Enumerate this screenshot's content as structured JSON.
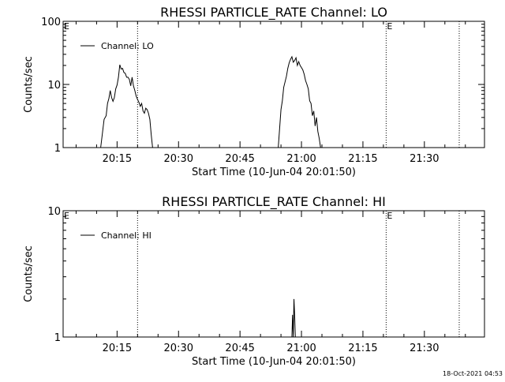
{
  "footer_timestamp": "18-Oct-2021 04:53",
  "colors": {
    "background": "#ffffff",
    "foreground": "#000000"
  },
  "chart_data": [
    {
      "type": "line",
      "title": "RHESSI PARTICLE_RATE Channel: LO",
      "xlabel": "Start Time (10-Jun-04 20:01:50)",
      "ylabel": "Counts/sec",
      "yscale": "log",
      "ylim": [
        1,
        100
      ],
      "yticks": [
        1,
        10,
        100
      ],
      "ytick_labels": [
        "1",
        "10",
        "100"
      ],
      "xlim": [
        "20:01:50",
        "21:44:40"
      ],
      "xticks": [
        "20:15",
        "20:30",
        "20:45",
        "21:00",
        "21:15",
        "21:30"
      ],
      "event_lines": [
        {
          "time": "20:01:50",
          "label": "E"
        },
        {
          "time": "20:20:00",
          "label": ""
        },
        {
          "time": "21:20:40",
          "label": "E"
        },
        {
          "time": "21:38:30",
          "label": ""
        }
      ],
      "legend": "top-left",
      "series": [
        {
          "name": "Channel: LO",
          "x": [
            "20:11:00",
            "20:11:50",
            "20:12:20",
            "20:12:40",
            "20:13:00",
            "20:13:20",
            "20:13:40",
            "20:14:00",
            "20:14:20",
            "20:14:40",
            "20:15:00",
            "20:15:20",
            "20:15:40",
            "20:16:00",
            "20:16:20",
            "20:16:40",
            "20:17:00",
            "20:17:20",
            "20:17:40",
            "20:18:00",
            "20:18:20",
            "20:18:40",
            "20:19:00",
            "20:19:20",
            "20:19:40",
            "20:20:00",
            "20:20:20",
            "20:20:40",
            "20:21:00",
            "20:21:20",
            "20:21:40",
            "20:22:00",
            "20:22:20",
            "20:22:40",
            "20:23:00",
            "20:23:20",
            "20:23:40",
            "20:54:20",
            "20:54:40",
            "20:55:00",
            "20:55:20",
            "20:55:40",
            "20:56:00",
            "20:56:20",
            "20:56:40",
            "20:57:00",
            "20:57:20",
            "20:57:40",
            "20:58:00",
            "20:58:20",
            "20:58:40",
            "20:59:00",
            "20:59:20",
            "20:59:40",
            "21:00:00",
            "21:00:20",
            "21:00:40",
            "21:01:00",
            "21:01:20",
            "21:01:40",
            "21:02:00",
            "21:02:20",
            "21:02:40",
            "21:03:00",
            "21:03:20",
            "21:03:40",
            "21:04:00",
            "21:04:20",
            "21:04:40"
          ],
          "values": [
            1,
            2.8,
            3.2,
            5.0,
            6.0,
            8.0,
            6.2,
            5.4,
            6.2,
            8.5,
            9.8,
            13.0,
            20.5,
            17.5,
            18.0,
            15.5,
            15.0,
            13.0,
            13.0,
            12.0,
            9.5,
            13.0,
            9.5,
            8.0,
            6.5,
            5.8,
            5.2,
            4.5,
            5.0,
            3.8,
            3.5,
            4.2,
            4.0,
            3.5,
            2.8,
            1.6,
            1,
            1,
            2.0,
            4.0,
            5.5,
            9.0,
            11.0,
            13.5,
            18.0,
            22.0,
            25.0,
            27.5,
            22.5,
            24.0,
            26.5,
            20.0,
            23.0,
            20.0,
            18.5,
            17.0,
            14.5,
            11.5,
            10.0,
            8.5,
            5.5,
            5.0,
            3.2,
            3.8,
            2.2,
            3.0,
            1.8,
            1.4,
            1
          ]
        }
      ]
    },
    {
      "type": "line",
      "title": "RHESSI PARTICLE_RATE Channel: HI",
      "xlabel": "Start Time (10-Jun-04 20:01:50)",
      "ylabel": "Counts/sec",
      "yscale": "log",
      "ylim": [
        1,
        10
      ],
      "yticks": [
        1,
        10
      ],
      "ytick_labels": [
        "1",
        "10"
      ],
      "xlim": [
        "20:01:50",
        "21:44:40"
      ],
      "xticks": [
        "20:15",
        "20:30",
        "20:45",
        "21:00",
        "21:15",
        "21:30"
      ],
      "event_lines": [
        {
          "time": "20:01:50",
          "label": "E"
        },
        {
          "time": "20:20:00",
          "label": ""
        },
        {
          "time": "21:20:40",
          "label": "E"
        },
        {
          "time": "21:38:30",
          "label": ""
        }
      ],
      "legend": "top-left",
      "series": [
        {
          "name": "Channel: HI",
          "x": [
            "20:57:40",
            "20:57:50",
            "20:58:00",
            "20:58:10",
            "20:58:20",
            "20:58:30"
          ],
          "values": [
            1,
            1.5,
            1,
            2.0,
            1.5,
            1
          ]
        }
      ]
    }
  ]
}
